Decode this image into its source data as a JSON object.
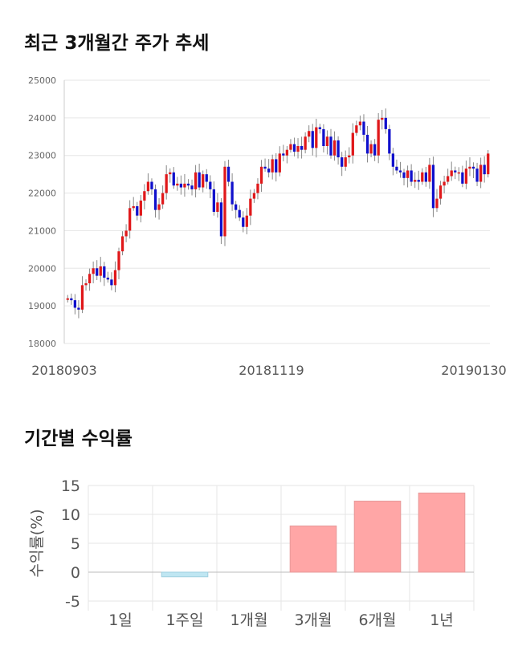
{
  "page": {
    "title1": "최근 3개월간 주가 추세",
    "title2": "기간별 수익률"
  },
  "colors": {
    "up": "#e0181a",
    "down": "#1010cc",
    "wick": "#888888",
    "grid": "#e6e6e6",
    "bar_positive": "#ffa6a6",
    "bar_negative": "#bfe6f2"
  },
  "chart_data": [
    {
      "type": "candlestick",
      "title": "최근 3개월간 주가 추세",
      "ylim": [
        18000,
        25000
      ],
      "yticks": [
        18000,
        19000,
        20000,
        21000,
        22000,
        23000,
        24000,
        25000
      ],
      "xtick_labels": [
        "20180903",
        "20181119",
        "20190130"
      ],
      "grid": true,
      "closes": [
        19200,
        19150,
        18950,
        18900,
        19550,
        19600,
        19850,
        20000,
        19800,
        20050,
        19750,
        19700,
        19550,
        19950,
        20450,
        20850,
        21000,
        21600,
        21650,
        21400,
        21800,
        22050,
        22300,
        22100,
        21550,
        21700,
        22000,
        22500,
        22550,
        22200,
        22250,
        22150,
        22250,
        22200,
        22100,
        22550,
        22150,
        22500,
        22300,
        22100,
        21500,
        21750,
        20850,
        22700,
        22300,
        21700,
        21550,
        21350,
        21100,
        21400,
        21850,
        22000,
        22250,
        22700,
        22650,
        22550,
        22900,
        22550,
        23050,
        23000,
        23150,
        23300,
        23100,
        23250,
        23150,
        23500,
        23650,
        23200,
        23750,
        23700,
        23250,
        23500,
        23000,
        23400,
        22950,
        22700,
        22950,
        23000,
        23600,
        23800,
        23900,
        23550,
        23050,
        23300,
        23000,
        23950,
        24000,
        23700,
        23050,
        22700,
        22600,
        22550,
        22400,
        22600,
        22300,
        22350,
        22300,
        22550,
        22300,
        22750,
        21600,
        21850,
        22200,
        22300,
        22450,
        22600,
        22550,
        22550,
        22250,
        22650,
        22700,
        22650,
        22300,
        22750,
        22500,
        23050
      ]
    },
    {
      "type": "bar",
      "title": "기간별 수익률",
      "ylabel": "수익률(%)",
      "categories": [
        "1일",
        "1주일",
        "1개월",
        "3개월",
        "6개월",
        "1년"
      ],
      "values": [
        0,
        -0.8,
        0,
        8.0,
        12.3,
        13.7
      ],
      "ylim": [
        -5,
        15
      ],
      "yticks": [
        -5,
        0,
        5,
        10,
        15
      ],
      "grid": true
    }
  ]
}
